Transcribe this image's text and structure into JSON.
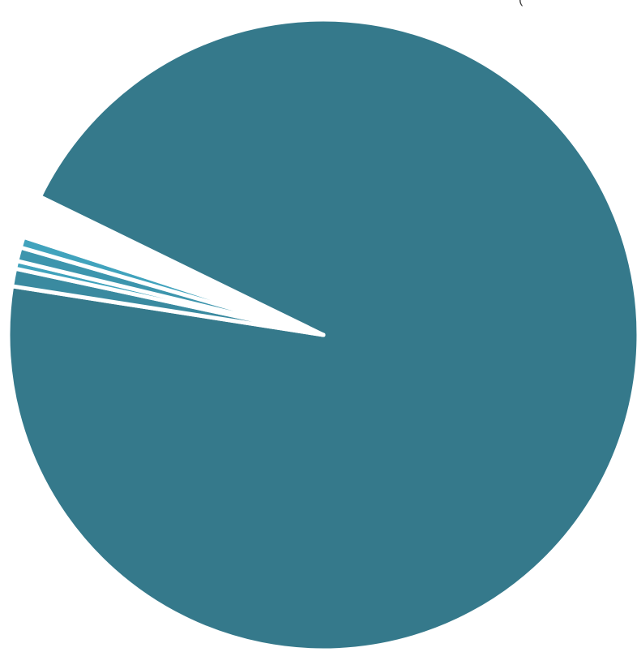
{
  "chart_data": {
    "type": "pie",
    "title": "",
    "clipped_text": "(",
    "start_angle_deg": -154,
    "slices": [
      {
        "value": 95.25,
        "color": "#35798b"
      },
      {
        "value": 0.9,
        "color": "#3a8aa0"
      },
      {
        "value": 0.4,
        "color": "#41a3bd"
      },
      {
        "value": 0.7,
        "color": "#3d95ad"
      },
      {
        "value": 0.55,
        "color": "#41a3bd"
      },
      {
        "value": 0.15,
        "color": "#4eb0c8"
      }
    ],
    "gap_after_last": 2.05
  }
}
